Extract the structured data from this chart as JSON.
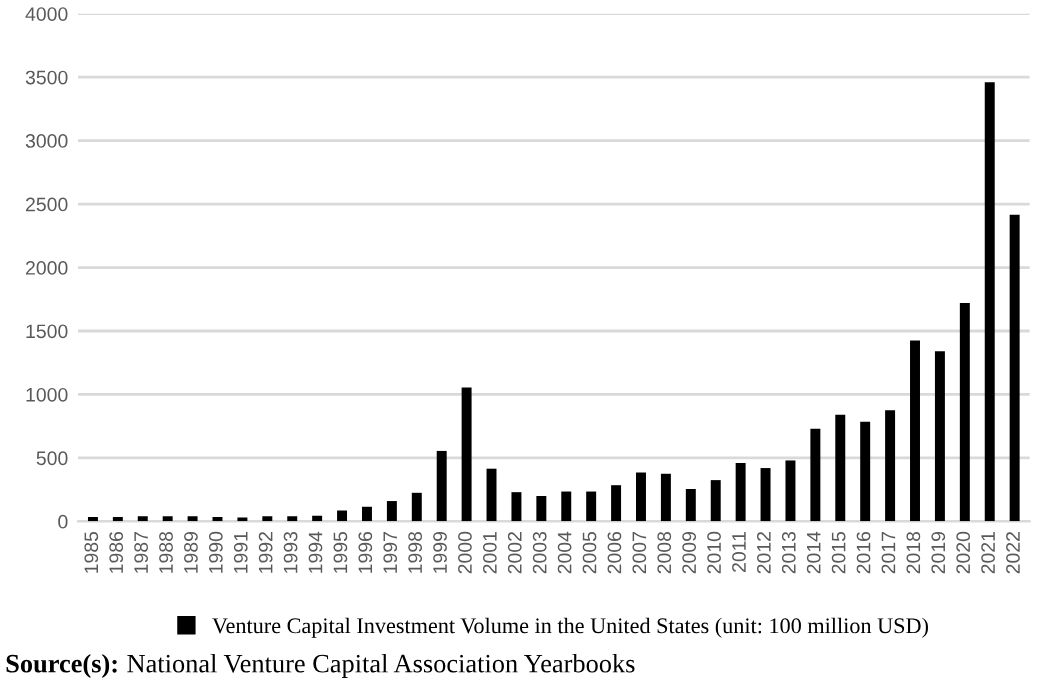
{
  "chart_data": {
    "type": "bar",
    "categories": [
      "1985",
      "1986",
      "1987",
      "1988",
      "1989",
      "1990",
      "1991",
      "1992",
      "1993",
      "1994",
      "1995",
      "1996",
      "1997",
      "1998",
      "1999",
      "2000",
      "2001",
      "2002",
      "2003",
      "2004",
      "2005",
      "2006",
      "2007",
      "2008",
      "2009",
      "2010",
      "2011",
      "2012",
      "2013",
      "2014",
      "2015",
      "2016",
      "2017",
      "2018",
      "2019",
      "2020",
      "2021",
      "2022"
    ],
    "series": [
      {
        "name": "Venture Capital Investment Volume in the United States (unit: 100 million USD)",
        "color": "#000000",
        "values": [
          35,
          35,
          40,
          40,
          40,
          35,
          30,
          40,
          40,
          45,
          85,
          115,
          160,
          225,
          555,
          1055,
          415,
          230,
          200,
          235,
          235,
          285,
          385,
          375,
          255,
          325,
          460,
          420,
          480,
          730,
          840,
          785,
          875,
          1425,
          1340,
          1720,
          3460,
          2415
        ]
      }
    ],
    "ylim": [
      0,
      4000
    ],
    "yticks": [
      0,
      500,
      1000,
      1500,
      2000,
      2500,
      3000,
      3500,
      4000
    ],
    "grid": "y",
    "legend": "bottom",
    "annotations": [
      "Source(s): National Venture Capital Association Yearbooks"
    ]
  }
}
